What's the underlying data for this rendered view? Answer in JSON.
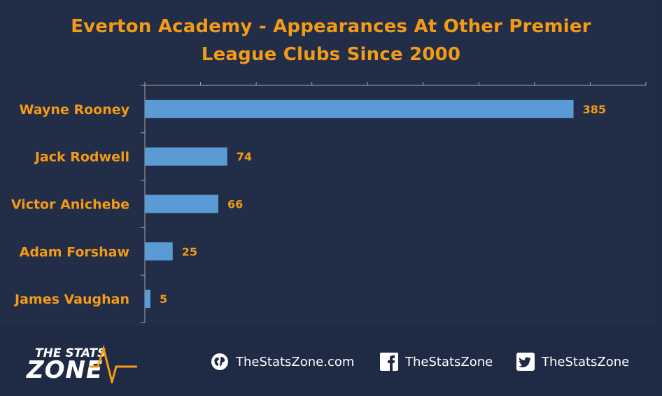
{
  "chart_data": {
    "type": "bar",
    "orientation": "horizontal",
    "title_lines": [
      "Everton Academy - Appearances At Other Premier",
      "League Clubs Since 2000"
    ],
    "categories": [
      "Wayne Rooney",
      "Jack Rodwell",
      "Victor Anichebe",
      "Adam Forshaw",
      "James Vaughan"
    ],
    "values": [
      385,
      74,
      66,
      25,
      5
    ],
    "xlim": [
      0,
      450
    ],
    "bar_color": "#5b9bd5",
    "label_color": "#f39b17",
    "grid": false,
    "legend": "none"
  },
  "footer": {
    "logo_top": "THE STATS",
    "logo_bottom": "ZONE",
    "links": [
      {
        "icon": "globe-icon",
        "label": "TheStatsZone.com"
      },
      {
        "icon": "facebook-icon",
        "label": "TheStatsZone"
      },
      {
        "icon": "twitter-icon",
        "label": "TheStatsZone"
      }
    ]
  },
  "colors": {
    "background": "#1f2b45",
    "accent": "#f39b17",
    "axis": "#a6a6a6"
  }
}
